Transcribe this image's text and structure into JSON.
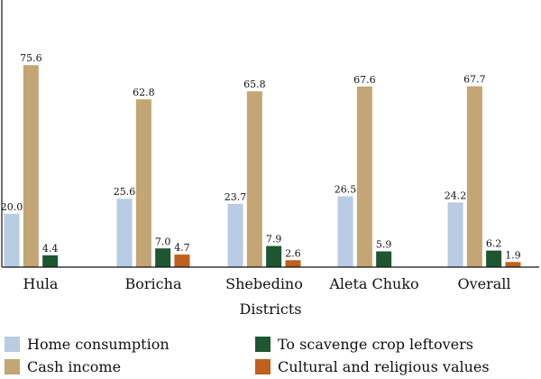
{
  "chart_data": {
    "type": "bar",
    "title": "",
    "xlabel": "Districts",
    "ylabel": "",
    "ylim": [
      0,
      100
    ],
    "grid": false,
    "legend": "bottom",
    "categories": [
      "Hula",
      "Boricha",
      "Shebedino",
      "Aleta Chuko",
      "Overall"
    ],
    "series": [
      {
        "name": "Home consumption",
        "color": "#b8cce4",
        "values": [
          20.0,
          25.6,
          23.7,
          26.5,
          24.2
        ]
      },
      {
        "name": "Cash income",
        "color": "#c4a574",
        "values": [
          75.6,
          62.8,
          65.8,
          67.6,
          67.7
        ]
      },
      {
        "name": "To scavenge crop leftovers",
        "color": "#1e5631",
        "values": [
          4.4,
          7.0,
          7.9,
          5.9,
          6.2
        ]
      },
      {
        "name": "Cultural and religious values",
        "color": "#c0601c",
        "values": [
          null,
          4.7,
          2.6,
          null,
          1.9
        ]
      }
    ]
  }
}
